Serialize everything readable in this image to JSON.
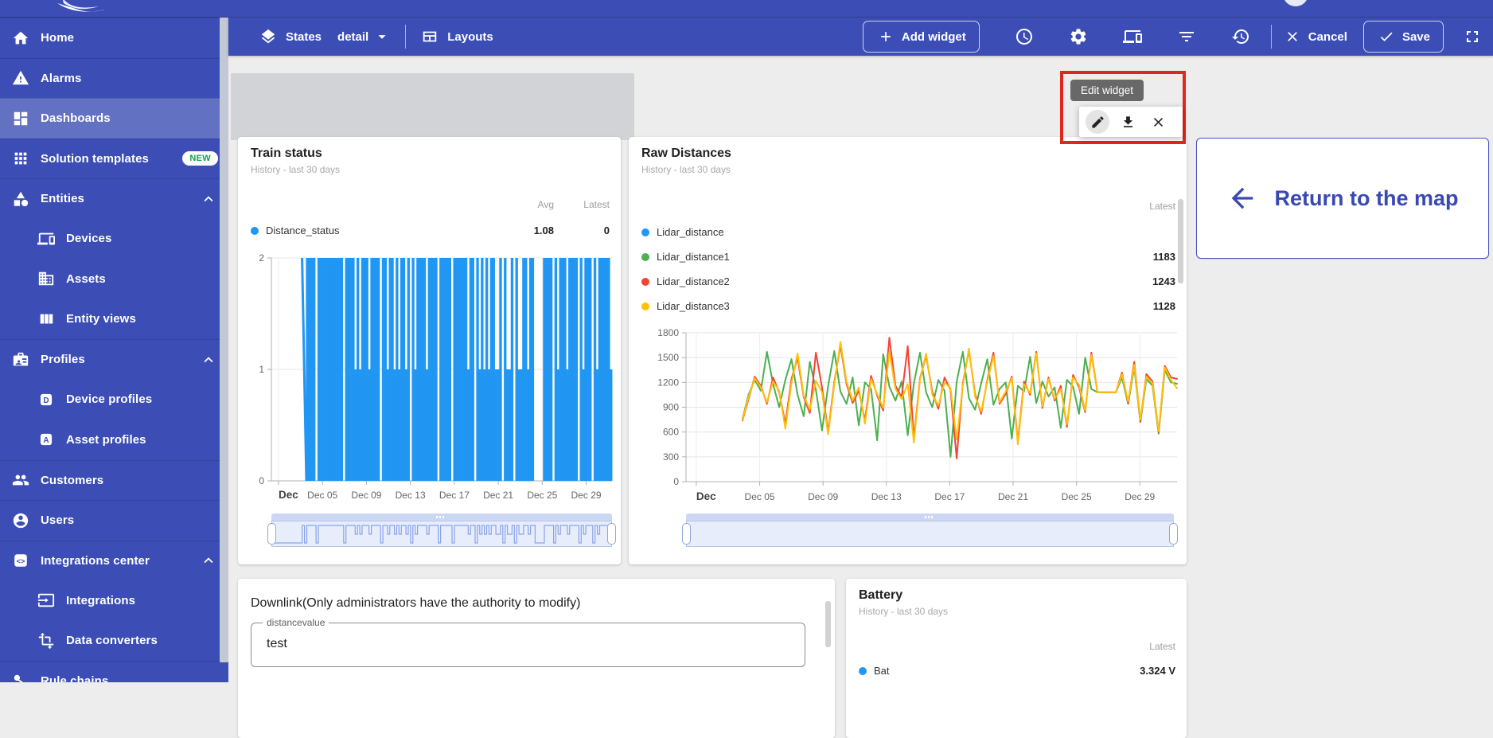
{
  "colors": {
    "sidebar_bg": "#3c4eb5",
    "active_item_bg": "rgba(255,255,255,0.2)",
    "content_bg": "#ededed",
    "chart_blue": "#2196f3",
    "chart_green": "#4caf50",
    "chart_red": "#f44336",
    "chart_amber": "#ffc107",
    "annotation_red": "#e2251e",
    "indigo_text": "#3a49b2",
    "badge_green": "#12a152"
  },
  "sidebar": {
    "items": [
      {
        "label": "Home",
        "icon": "home-icon",
        "top": true
      },
      {
        "label": "Alarms",
        "icon": "alarms-icon",
        "top": true
      },
      {
        "label": "Dashboards",
        "icon": "dashboards-icon",
        "top": true,
        "active": true
      },
      {
        "label": "Solution templates",
        "icon": "solution-templates-icon",
        "top": true,
        "badge": "NEW"
      },
      {
        "label": "Entities",
        "icon": "entities-icon",
        "top": true,
        "expanded": true
      },
      {
        "label": "Devices",
        "icon": "devices-icon",
        "child": true
      },
      {
        "label": "Assets",
        "icon": "assets-icon",
        "child": true
      },
      {
        "label": "Entity views",
        "icon": "entity-views-icon",
        "child": true
      },
      {
        "label": "Profiles",
        "icon": "profiles-icon",
        "top": true,
        "expanded": true
      },
      {
        "label": "Device profiles",
        "icon": "device-profiles-icon",
        "child": true,
        "letter": "D"
      },
      {
        "label": "Asset profiles",
        "icon": "asset-profiles-icon",
        "child": true,
        "letter": "A"
      },
      {
        "label": "Customers",
        "icon": "customers-icon",
        "top": true
      },
      {
        "label": "Users",
        "icon": "users-icon",
        "top": true
      },
      {
        "label": "Integrations center",
        "icon": "integrations-center-icon",
        "top": true,
        "expanded": true
      },
      {
        "label": "Integrations",
        "icon": "integrations-icon",
        "child": true
      },
      {
        "label": "Data converters",
        "icon": "data-converters-icon",
        "child": true
      },
      {
        "label": "Rule chains",
        "icon": "rule-chains-icon",
        "top": true
      }
    ]
  },
  "toolbar": {
    "states_label": "States",
    "state_value": "detail",
    "layouts_label": "Layouts",
    "add_widget_label": "Add widget",
    "cancel_label": "Cancel",
    "save_label": "Save",
    "right_icons": [
      "time-window-icon",
      "dashboard-settings-icon",
      "entity-aliases-icon",
      "filters-icon",
      "version-history-icon"
    ]
  },
  "edit_popup": {
    "tooltip": "Edit widget",
    "actions": [
      "edit-widget-icon",
      "download-widget-icon",
      "remove-widget-icon"
    ]
  },
  "return_card": {
    "label": "Return to the map"
  },
  "widgets": {
    "train_status": {
      "title": "Train status",
      "subtitle": "History - last 30 days",
      "columns": [
        "Avg",
        "Latest"
      ],
      "legend": [
        {
          "label": "Distance_status",
          "color": "#2196f3",
          "values": [
            "1.08",
            "0"
          ]
        }
      ]
    },
    "raw_distances": {
      "title": "Raw Distances",
      "subtitle": "History - last 30 days",
      "columns": [
        "Latest"
      ],
      "legend": [
        {
          "label": "Lidar_distance",
          "color": "#2196f3",
          "values": [
            ""
          ]
        },
        {
          "label": "Lidar_distance1",
          "color": "#4caf50",
          "values": [
            "1183"
          ]
        },
        {
          "label": "Lidar_distance2",
          "color": "#f44336",
          "values": [
            "1243"
          ]
        },
        {
          "label": "Lidar_distance3",
          "color": "#ffc107",
          "values": [
            "1128"
          ]
        }
      ]
    },
    "downlink": {
      "title": "Downlink(Only administrators have the authority to modify)",
      "field_label": "distancevalue",
      "field_value": "test"
    },
    "battery": {
      "title": "Battery",
      "subtitle": "History - last 30 days",
      "columns": [
        "Latest"
      ],
      "legend": [
        {
          "label": "Bat",
          "color": "#2196f3",
          "values": [
            "3.324 V"
          ]
        }
      ]
    }
  },
  "chart_data": [
    {
      "type": "line",
      "title": "Train status",
      "subtitle": "History - last 30 days",
      "x_range": "Dec 01 - Dec 31",
      "tick_days": [
        1,
        5,
        9,
        13,
        17,
        21,
        25,
        29
      ],
      "tick_labels": [
        "Dec",
        "Dec 05",
        "Dec 09",
        "Dec 13",
        "Dec 17",
        "Dec 21",
        "Dec 25",
        "Dec 29"
      ],
      "ylim": [
        0,
        2
      ],
      "yticks": [
        0,
        1,
        2
      ],
      "grid": true,
      "legend_position": "top",
      "series": [
        {
          "name": "Distance_status",
          "color": "#2196f3",
          "avg": 1.08,
          "latest": 0,
          "encoding": "one sample per ~5 hours; 2/1/0 = signal level, . = no data",
          "trace": ".............202222022222222222022221212221222202212212122120212222122220222220222222122021212122112021120211221220000222202122212222021222021222221"
        }
      ]
    },
    {
      "type": "line",
      "title": "Raw Distances",
      "subtitle": "History - last 30 days",
      "x_range": "Dec 01 - Dec 31",
      "x_start_frac": 0.115,
      "tick_days": [
        1,
        5,
        9,
        13,
        17,
        21,
        25,
        29
      ],
      "tick_labels": [
        "Dec",
        "Dec 05",
        "Dec 09",
        "Dec 13",
        "Dec 17",
        "Dec 21",
        "Dec 25",
        "Dec 29"
      ],
      "ylim": [
        0,
        1800
      ],
      "yticks": [
        0,
        300,
        600,
        900,
        1200,
        1500,
        1800
      ],
      "grid": true,
      "legend_position": "top",
      "series": [
        {
          "name": "Lidar_distance",
          "color": "#2196f3",
          "latest": null,
          "values": []
        },
        {
          "name": "Lidar_distance1",
          "color": "#4caf50",
          "latest": 1183,
          "values": [
            760,
            1050,
            1230,
            1100,
            1570,
            1180,
            900,
            1230,
            1480,
            1050,
            790,
            1450,
            1110,
            620,
            1160,
            1580,
            1090,
            940,
            1260,
            680,
            1200,
            1120,
            500,
            1540,
            1150,
            980,
            1210,
            560,
            1190,
            1560,
            1080,
            900,
            1230,
            1100,
            300,
            1210,
            1570,
            1010,
            870,
            1190,
            1480,
            930,
            1120,
            1200,
            520,
            1160,
            1090,
            1510,
            950,
            1210,
            1030,
            1140,
            650,
            1230,
            1150,
            820,
            1500,
            1120,
            1080,
            1080,
            1080,
            1080,
            1260,
            940,
            1380,
            720,
            1240,
            1160,
            580,
            1350,
            1200,
            1183
          ]
        },
        {
          "name": "Lidar_distance2",
          "color": "#f44336",
          "latest": 1243,
          "values": [
            740,
            1000,
            1270,
            1160,
            940,
            1260,
            1080,
            700,
            1240,
            1500,
            1020,
            830,
            1560,
            1140,
            600,
            1200,
            1650,
            1180,
            950,
            1100,
            740,
            1280,
            1040,
            860,
            1740,
            1160,
            1020,
            1640,
            520,
            1250,
            1520,
            1090,
            880,
            1260,
            1110,
            280,
            1190,
            1590,
            1060,
            820,
            1230,
            1560,
            940,
            1060,
            1270,
            480,
            1210,
            1050,
            1570,
            890,
            1260,
            980,
            1160,
            660,
            1290,
            1140,
            840,
            1560,
            1080,
            1080,
            1080,
            1080,
            1320,
            950,
            1450,
            730,
            1300,
            1210,
            600,
            1400,
            1260,
            1243
          ]
        },
        {
          "name": "Lidar_distance3",
          "color": "#ffc107",
          "latest": 1128,
          "values": [
            750,
            1020,
            1250,
            1140,
            960,
            1210,
            1100,
            640,
            1190,
            1550,
            1040,
            870,
            1220,
            1080,
            570,
            1170,
            1690,
            1210,
            980,
            1140,
            700,
            1240,
            1060,
            890,
            1570,
            1120,
            1000,
            1180,
            470,
            1230,
            1550,
            1050,
            920,
            1200,
            1130,
            510,
            1160,
            1610,
            1030,
            850,
            1210,
            1520,
            960,
            1090,
            1250,
            450,
            1180,
            1070,
            1550,
            910,
            1240,
            1000,
            1120,
            690,
            1260,
            1170,
            860,
            1530,
            1080,
            1080,
            1080,
            1080,
            1300,
            970,
            1410,
            750,
            1270,
            1190,
            610,
            1380,
            1230,
            1128
          ]
        }
      ]
    }
  ]
}
